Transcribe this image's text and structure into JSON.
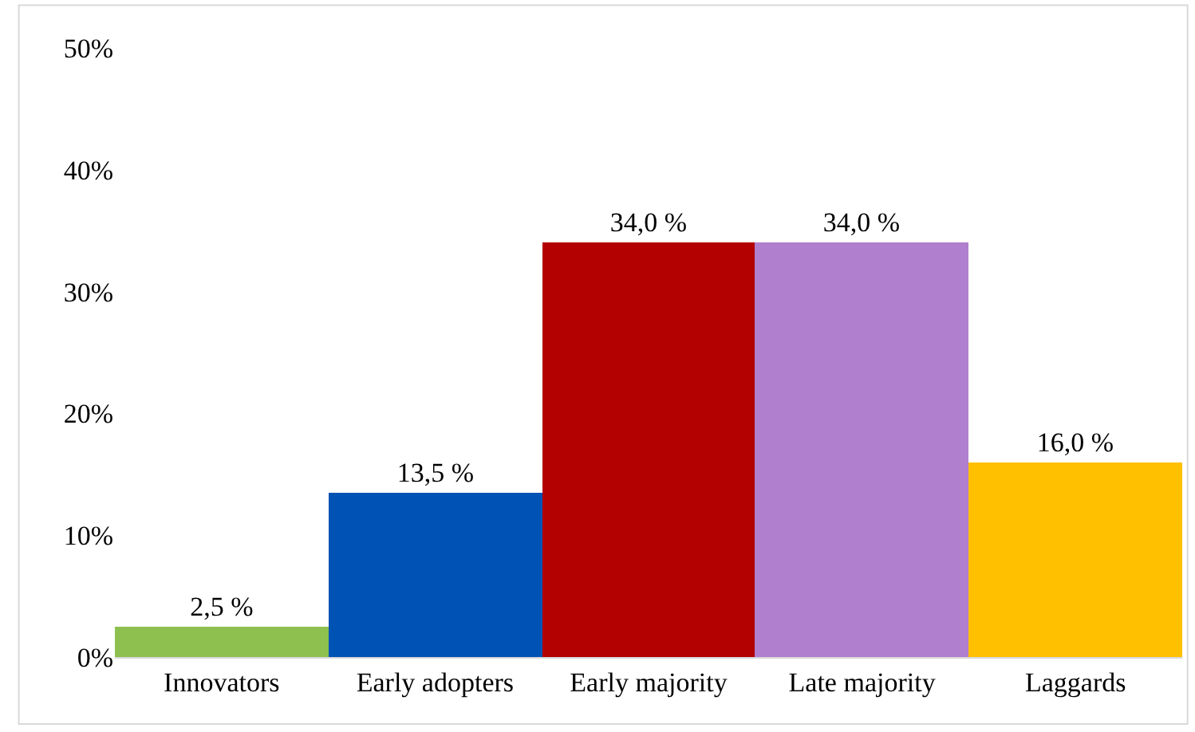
{
  "chart_data": {
    "type": "bar",
    "categories": [
      "Innovators",
      "Early adopters",
      "Early majority",
      "Late majority",
      "Laggards"
    ],
    "values": [
      2.5,
      13.5,
      34.0,
      34.0,
      16.0
    ],
    "colors": [
      "#8dc04f",
      "#0052b4",
      "#b30000",
      "#b07fce",
      "#ffc000"
    ],
    "value_labels": [
      "2,5 %",
      "13,5 %",
      "34,0 %",
      "34,0 %",
      "16,0 %"
    ],
    "ylim": [
      0,
      50
    ],
    "yticks": [
      {
        "value": 0,
        "label": "0%"
      },
      {
        "value": 10,
        "label": "10%"
      },
      {
        "value": 20,
        "label": "20%"
      },
      {
        "value": 30,
        "label": "30%"
      },
      {
        "value": 40,
        "label": "40%"
      },
      {
        "value": 50,
        "label": "50%"
      }
    ],
    "legend": false
  }
}
